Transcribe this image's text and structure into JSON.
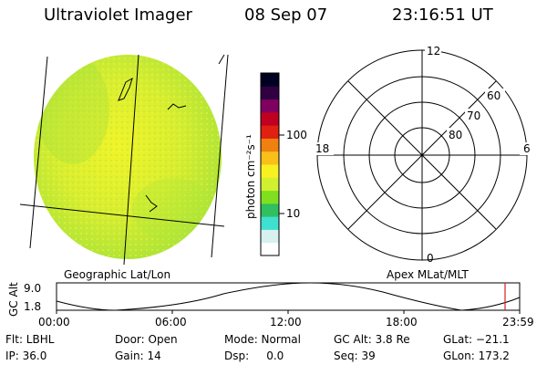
{
  "header": {
    "title": "Ultraviolet Imager",
    "date": "08 Sep 07",
    "time": "23:16:51 UT"
  },
  "colorbar": {
    "unit": "photon cm⁻²s⁻¹",
    "ticks": [
      "100",
      "10"
    ],
    "colors": [
      "#ffffff",
      "#d8f0f0",
      "#40e0d0",
      "#30c060",
      "#80e020",
      "#d0f030",
      "#f8f020",
      "#f8c018",
      "#f08010",
      "#e02010",
      "#c00020",
      "#800060",
      "#300040",
      "#000020"
    ]
  },
  "image_panel": {
    "label": "Geographic Lat/Lon"
  },
  "polar_plot": {
    "label": "Apex MLat/MLT",
    "mlt_labels": {
      "top": "12",
      "left": "18",
      "right": "6",
      "bottom": "0"
    },
    "lat_labels": [
      "60",
      "70",
      "80"
    ]
  },
  "altitude_plot": {
    "ylabel": "GC Alt",
    "yticks": [
      "9.0",
      "1.8"
    ],
    "xticks": [
      "00:00",
      "06:00",
      "12:00",
      "18:00",
      "23:59"
    ]
  },
  "status": {
    "filter": "Flt: LBHL",
    "ip": "IP: 36.0",
    "door": "Door: Open",
    "gain": "Gain: 14",
    "mode": "Mode: Normal",
    "dsp": "Dsp:     0.0",
    "gc_alt": "GC Alt: 3.8 Re",
    "seq": "Seq: 39",
    "glat": "GLat: −21.1",
    "glon": "GLon: 173.2"
  }
}
